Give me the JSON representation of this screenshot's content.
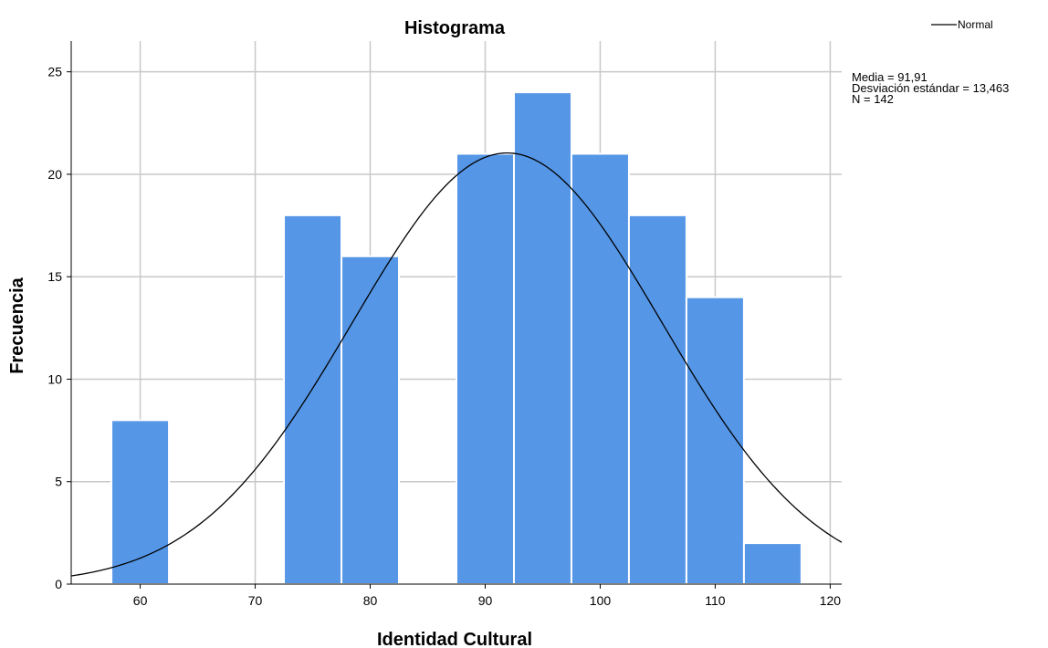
{
  "chart_data": {
    "type": "bar",
    "title": "Histograma",
    "xlabel": "Identidad Cultural",
    "ylabel": "Frecuencia",
    "xlim": [
      54,
      121
    ],
    "ylim": [
      0,
      26.5
    ],
    "x_ticks": [
      60,
      70,
      80,
      90,
      100,
      110,
      120
    ],
    "y_ticks": [
      0,
      5,
      10,
      15,
      20,
      25
    ],
    "grid": true,
    "bin_width": 5,
    "bins": [
      {
        "start": 57.5,
        "end": 62.5,
        "count": 8
      },
      {
        "start": 62.5,
        "end": 67.5,
        "count": 0
      },
      {
        "start": 67.5,
        "end": 72.5,
        "count": 0
      },
      {
        "start": 72.5,
        "end": 77.5,
        "count": 18
      },
      {
        "start": 77.5,
        "end": 82.5,
        "count": 16
      },
      {
        "start": 82.5,
        "end": 87.5,
        "count": 0
      },
      {
        "start": 87.5,
        "end": 92.5,
        "count": 21
      },
      {
        "start": 92.5,
        "end": 97.5,
        "count": 24
      },
      {
        "start": 97.5,
        "end": 102.5,
        "count": 21
      },
      {
        "start": 102.5,
        "end": 107.5,
        "count": 18
      },
      {
        "start": 107.5,
        "end": 112.5,
        "count": 14
      },
      {
        "start": 112.5,
        "end": 117.5,
        "count": 2
      }
    ],
    "bar_color": "#5596e6",
    "normal_curve": {
      "name": "Normal",
      "mean": 91.91,
      "sd": 13.463,
      "n": 142
    },
    "stats": {
      "mean_label": "Media = 91,91",
      "sd_label": "Desviación estándar = 13,463",
      "n_label": "N = 142"
    },
    "legend": {
      "placement": "top-right",
      "label": "Normal"
    }
  }
}
